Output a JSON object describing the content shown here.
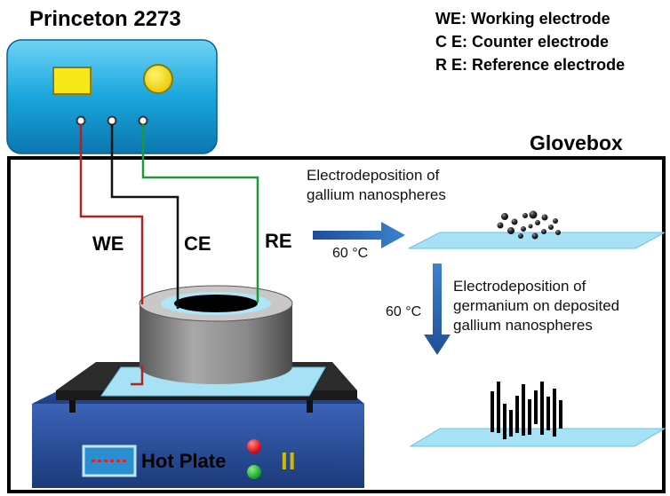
{
  "instrument": {
    "name": "Princeton 2273"
  },
  "legend": {
    "items": [
      "WE: Working electrode",
      "C E: Counter electrode",
      "R E: Reference electrode"
    ]
  },
  "enclosure": {
    "label": "Glovebox"
  },
  "electrodes": {
    "we": "WE",
    "ce": "CE",
    "re": "RE"
  },
  "hot_plate": {
    "label": "Hot Plate",
    "switch_glyph": "II"
  },
  "steps": [
    {
      "lines": [
        "Electrodeposition of",
        "gallium nanospheres"
      ],
      "temperature": "60 °C"
    },
    {
      "lines": [
        "Electrodeposition of",
        "germanium on deposited",
        "gallium nanospheres"
      ],
      "temperature": "60 °C"
    }
  ],
  "colors": {
    "instrument_blue": "#1aa6dd",
    "we_wire": "#b22222",
    "ce_wire": "#111111",
    "re_wire": "#1a9a3a",
    "arrow_blue": "#1f5aa6",
    "substrate": "#a6e1f5",
    "hot_plate_blue": "#2a4e9a",
    "cell_gray": "#8c8c8c"
  }
}
